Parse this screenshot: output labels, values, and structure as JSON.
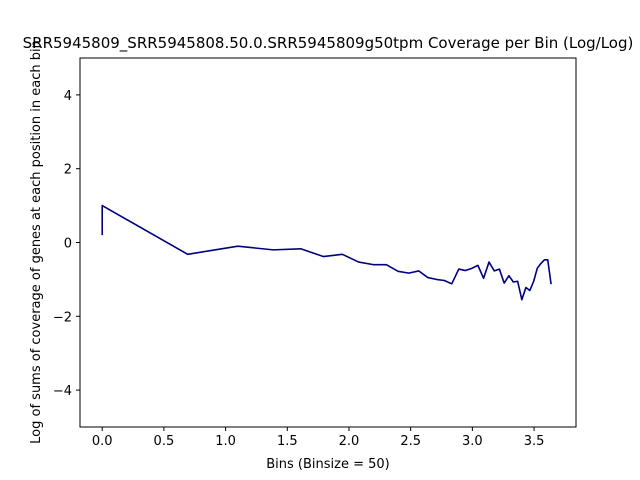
{
  "chart_data": {
    "type": "line",
    "title": "SRR5945809_SRR5945808.50.0.SRR5945809g50tpm Coverage per Bin (Log/Log)",
    "xlabel": "Bins (Binsize = 50)",
    "ylabel": "Log of sums of coverage of genes at each position in each bin",
    "xlim": [
      -0.18,
      3.84
    ],
    "ylim": [
      -5,
      5
    ],
    "xticks": [
      0.0,
      0.5,
      1.0,
      1.5,
      2.0,
      2.5,
      3.0,
      3.5
    ],
    "xtick_labels": [
      "0.0",
      "0.5",
      "1.0",
      "1.5",
      "2.0",
      "2.5",
      "3.0",
      "3.5"
    ],
    "yticks": [
      -4,
      -2,
      0,
      2,
      4
    ],
    "ytick_labels": [
      "−4",
      "−2",
      "0",
      "2",
      "4"
    ],
    "grid": false,
    "series": [
      {
        "color": "#000080",
        "x": [
          0.0,
          0.0,
          0.693,
          1.099,
          1.386,
          1.609,
          1.792,
          1.946,
          2.079,
          2.197,
          2.303,
          2.398,
          2.485,
          2.565,
          2.639,
          2.708,
          2.773,
          2.833,
          2.89,
          2.944,
          2.996,
          3.045,
          3.091,
          3.135,
          3.178,
          3.219,
          3.258,
          3.296,
          3.332,
          3.367,
          3.401,
          3.434,
          3.466,
          3.497,
          3.526,
          3.555,
          3.584,
          3.611,
          3.638
        ],
        "y": [
          0.2,
          1.0,
          -0.32,
          -0.1,
          -0.2,
          -0.17,
          -0.38,
          -0.32,
          -0.53,
          -0.6,
          -0.6,
          -0.78,
          -0.83,
          -0.77,
          -0.95,
          -1.0,
          -1.03,
          -1.12,
          -0.72,
          -0.76,
          -0.7,
          -0.62,
          -0.97,
          -0.53,
          -0.77,
          -0.72,
          -1.1,
          -0.9,
          -1.07,
          -1.05,
          -1.55,
          -1.22,
          -1.3,
          -1.05,
          -0.7,
          -0.57,
          -0.47,
          -0.47,
          -1.13
        ]
      }
    ]
  }
}
